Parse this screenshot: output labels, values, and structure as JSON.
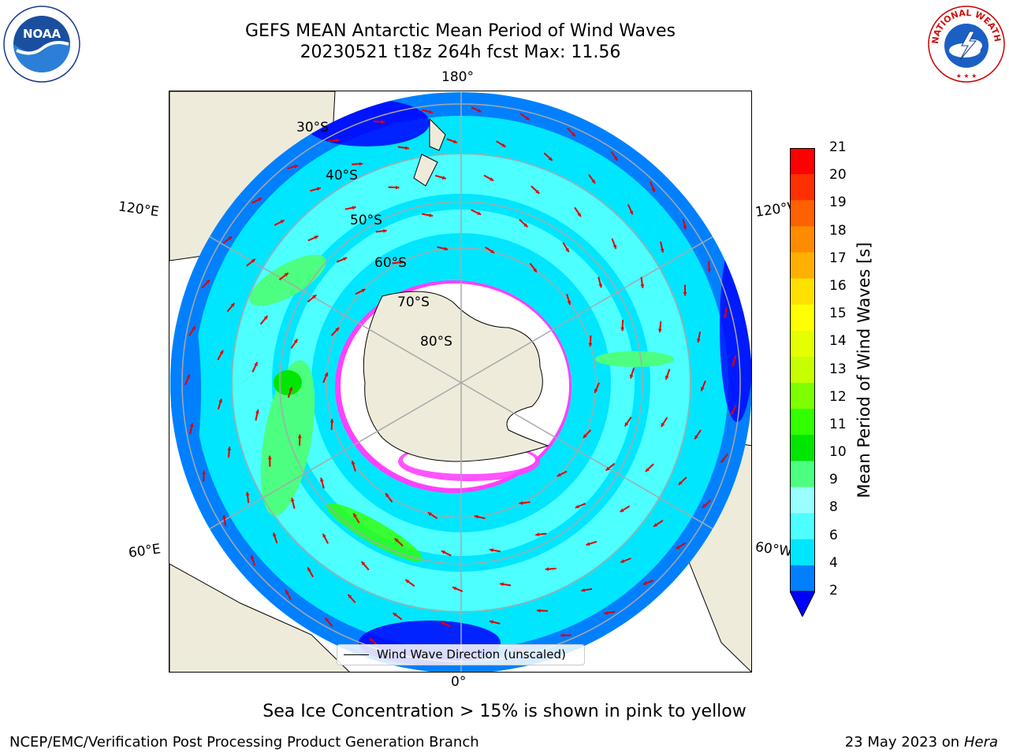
{
  "header": {
    "title_line1": "GEFS MEAN Antarctic Mean Period of Wind Waves",
    "title_line2": "20230521 t18z 264h fcst   Max: 11.56"
  },
  "logos": {
    "left": "NOAA",
    "right": "NATIONAL WEATHER SERVICE"
  },
  "map": {
    "projection": "south polar stereographic",
    "longitude_labels": {
      "top": "180°",
      "bottom": "0°",
      "upper_left": "120°E",
      "upper_right": "120°W",
      "lower_left": "60°E",
      "lower_right": "60°W"
    },
    "latitude_labels": [
      "30°S",
      "40°S",
      "50°S",
      "60°S",
      "70°S",
      "80°S"
    ],
    "legend": "Wind Wave Direction (unscaled)"
  },
  "colorbar": {
    "label": "Mean Period of Wind Waves [s]",
    "ticks": [
      "21",
      "20",
      "19",
      "18",
      "17",
      "16",
      "15",
      "14",
      "13",
      "12",
      "11",
      "10",
      "9",
      "8",
      "6",
      "4",
      "2"
    ],
    "colors": [
      "#ff0000",
      "#ff3000",
      "#ff6000",
      "#ff8c00",
      "#ffb000",
      "#ffe000",
      "#ffff00",
      "#e6ff00",
      "#c8ff00",
      "#7dff00",
      "#32ff00",
      "#00e600",
      "#4dff80",
      "#99ffff",
      "#4dffff",
      "#00e6ff",
      "#0080ff",
      "#0000ff"
    ]
  },
  "subtitle": "Sea Ice Concentration > 15% is shown in pink to yellow",
  "footer": {
    "left": "NCEP/EMC/Verification Post Processing Product Generation Branch",
    "right_date": "23 May 2023 on",
    "right_host": "Hera"
  }
}
